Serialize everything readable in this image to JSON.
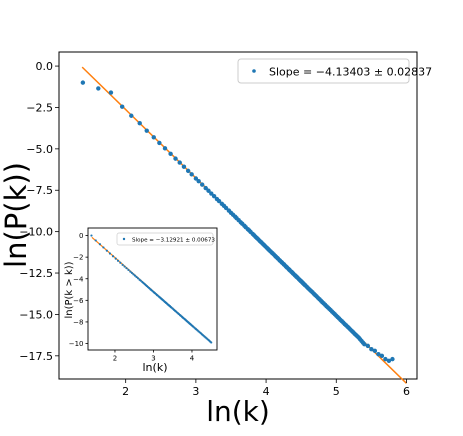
{
  "chart_data": [
    {
      "id": "main",
      "type": "scatter",
      "xlabel": "ln(k)",
      "ylabel": "ln(P(k))",
      "xlim": [
        1.05,
        6.15
      ],
      "ylim": [
        -18.9,
        0.85
      ],
      "xticks": [
        2,
        3,
        4,
        5,
        6
      ],
      "yticks": [
        0.0,
        -2.5,
        -5.0,
        -7.5,
        -10.0,
        -12.5,
        -15.0,
        -17.5
      ],
      "xtick_labels": [
        "2",
        "3",
        "4",
        "5",
        "6"
      ],
      "ytick_labels": [
        "0.0",
        "−2.5",
        "−5.0",
        "−7.5",
        "−10.0",
        "−12.5",
        "−15.0",
        "−17.5"
      ],
      "legend": {
        "label": "Slope = −4.13403 ± 0.02837",
        "placement": "top-right"
      },
      "fit": {
        "slope": -4.13403,
        "intercept": 5.64,
        "x_range": [
          1.38,
          6.0
        ],
        "color": "#ff7f0e"
      },
      "point_color": "#1f77b4",
      "series": [
        {
          "x": [
            1.39,
            1.61,
            1.79,
            1.95,
            2.08,
            2.2,
            2.3,
            2.4,
            2.48,
            2.56,
            2.64,
            2.71,
            2.77,
            2.83,
            2.89,
            2.94,
            3.0,
            3.04,
            3.09,
            3.14,
            3.18,
            3.22,
            3.26,
            3.3,
            3.33,
            3.37,
            3.4,
            3.43,
            3.47,
            3.5,
            3.53,
            3.56,
            3.58,
            3.61,
            3.64,
            3.66,
            3.69,
            3.71,
            3.74,
            3.76,
            3.78,
            3.81,
            3.83,
            3.85,
            3.87,
            3.89,
            3.91,
            3.93,
            3.95,
            3.97,
            3.99,
            4.01,
            4.03,
            4.04,
            4.06,
            4.08,
            4.09,
            4.11,
            4.13,
            4.14,
            4.16,
            4.17,
            4.19,
            4.2,
            4.22,
            4.23,
            4.25,
            4.26,
            4.28,
            4.29,
            4.3,
            4.32,
            4.33,
            4.34,
            4.36,
            4.37,
            4.38,
            4.39,
            4.41,
            4.42,
            4.43,
            4.44,
            4.45,
            4.47,
            4.48,
            4.49,
            4.5,
            4.51,
            4.52,
            4.53,
            4.54,
            4.55,
            4.56,
            4.58,
            4.6,
            4.62,
            4.64,
            4.66,
            4.68,
            4.7,
            4.72,
            4.74,
            4.76,
            4.78,
            4.8,
            4.82,
            4.84,
            4.86,
            4.88,
            4.9,
            4.92,
            4.94,
            4.96,
            4.98,
            5.0,
            5.02,
            5.04,
            5.06,
            5.08,
            5.1,
            5.12,
            5.14,
            5.16,
            5.18,
            5.2,
            5.22,
            5.24,
            5.26,
            5.28,
            5.3,
            5.32,
            5.34,
            5.36,
            5.38,
            5.4,
            5.45,
            5.5,
            5.55,
            5.6,
            5.65,
            5.7,
            5.75,
            5.8
          ],
          "y": [
            -1.0,
            -1.35,
            -1.6,
            -2.45,
            -3.0,
            -3.45,
            -3.9,
            -4.3,
            -4.64,
            -4.97,
            -5.3,
            -5.59,
            -5.83,
            -6.08,
            -6.33,
            -6.54,
            -6.79,
            -6.95,
            -7.16,
            -7.37,
            -7.53,
            -7.7,
            -7.86,
            -8.03,
            -8.15,
            -8.32,
            -8.44,
            -8.57,
            -8.73,
            -8.86,
            -8.98,
            -9.1,
            -9.19,
            -9.31,
            -9.44,
            -9.52,
            -9.64,
            -9.73,
            -9.85,
            -9.93,
            -10.02,
            -10.14,
            -10.22,
            -10.31,
            -10.39,
            -10.47,
            -10.56,
            -10.64,
            -10.72,
            -10.8,
            -10.89,
            -10.97,
            -11.05,
            -11.1,
            -11.18,
            -11.26,
            -11.3,
            -11.38,
            -11.47,
            -11.51,
            -11.59,
            -11.63,
            -11.72,
            -11.76,
            -11.84,
            -11.88,
            -11.96,
            -12.0,
            -12.09,
            -12.13,
            -12.17,
            -12.25,
            -12.3,
            -12.34,
            -12.42,
            -12.46,
            -12.5,
            -12.55,
            -12.63,
            -12.67,
            -12.71,
            -12.75,
            -12.79,
            -12.88,
            -12.92,
            -12.96,
            -13.0,
            -13.04,
            -13.08,
            -13.13,
            -13.17,
            -13.21,
            -13.25,
            -13.33,
            -13.42,
            -13.5,
            -13.58,
            -13.66,
            -13.75,
            -13.83,
            -13.91,
            -14.0,
            -14.08,
            -14.16,
            -14.25,
            -14.33,
            -14.41,
            -14.5,
            -14.58,
            -14.66,
            -14.74,
            -14.83,
            -14.91,
            -14.99,
            -15.08,
            -15.16,
            -15.24,
            -15.33,
            -15.41,
            -15.49,
            -15.58,
            -15.66,
            -15.74,
            -15.82,
            -15.91,
            -15.99,
            -16.07,
            -16.16,
            -16.24,
            -16.32,
            -16.4,
            -16.5,
            -16.6,
            -16.7,
            -16.8,
            -16.9,
            -17.1,
            -17.2,
            -17.4,
            -17.5,
            -17.7,
            -17.8,
            -17.7
          ]
        }
      ]
    },
    {
      "id": "inset",
      "type": "scatter",
      "xlabel": "ln(k)",
      "ylabel": "ln(P(k > k))",
      "xlim": [
        1.3,
        4.65
      ],
      "ylim": [
        -10.6,
        0.7
      ],
      "xticks": [
        2,
        3,
        4
      ],
      "yticks": [
        0,
        -2,
        -4,
        -6,
        -8,
        -10
      ],
      "xtick_labels": [
        "2",
        "3",
        "4"
      ],
      "ytick_labels": [
        "0",
        "−2",
        "−4",
        "−6",
        "−8",
        "−10"
      ],
      "legend": {
        "label": "Slope = −3.12921 ± 0.00673",
        "placement": "top-right"
      },
      "fit": {
        "slope": -3.12921,
        "intercept": 4.22,
        "x_range": [
          1.4,
          4.5
        ],
        "color": "#ff7f0e"
      },
      "point_color": "#1f77b4",
      "series": [
        {
          "x": [
            1.39,
            1.5,
            1.61,
            1.7,
            1.79,
            1.87,
            1.95,
            2.02,
            2.08,
            2.14,
            2.2,
            2.25,
            2.3,
            2.35,
            2.4,
            2.44,
            2.48,
            2.52,
            2.56,
            2.6,
            2.64,
            2.67,
            2.71,
            2.74,
            2.77,
            2.8,
            2.83,
            2.86,
            2.89,
            2.92,
            2.94,
            2.97,
            3.0,
            3.02,
            3.04,
            3.07,
            3.09,
            3.11,
            3.14,
            3.16,
            3.18,
            3.2,
            3.22,
            3.24,
            3.26,
            3.28,
            3.3,
            3.32,
            3.33,
            3.35,
            3.37,
            3.39,
            3.4,
            3.42,
            3.43,
            3.45,
            3.47,
            3.5,
            3.53,
            3.56,
            3.58,
            3.61,
            3.64,
            3.66,
            3.69,
            3.71,
            3.74,
            3.76,
            3.78,
            3.81,
            3.83,
            3.85,
            3.87,
            3.89,
            3.91,
            3.93,
            3.95,
            3.97,
            3.99,
            4.01,
            4.03,
            4.06,
            4.09,
            4.11,
            4.14,
            4.17,
            4.2,
            4.23,
            4.26,
            4.29,
            4.32,
            4.35,
            4.38,
            4.41,
            4.44,
            4.47,
            4.5
          ],
          "y": [
            0.0,
            -0.45,
            -0.8,
            -1.1,
            -1.4,
            -1.66,
            -1.92,
            -2.14,
            -2.33,
            -2.52,
            -2.71,
            -2.87,
            -3.02,
            -3.18,
            -3.34,
            -3.46,
            -3.59,
            -3.71,
            -3.84,
            -3.96,
            -4.09,
            -4.18,
            -4.3,
            -4.4,
            -4.49,
            -4.59,
            -4.68,
            -4.78,
            -4.87,
            -4.97,
            -5.03,
            -5.12,
            -5.22,
            -5.28,
            -5.34,
            -5.43,
            -5.5,
            -5.56,
            -5.65,
            -5.71,
            -5.77,
            -5.84,
            -5.9,
            -5.96,
            -6.02,
            -6.09,
            -6.15,
            -6.21,
            -6.24,
            -6.3,
            -6.37,
            -6.43,
            -6.46,
            -6.52,
            -6.55,
            -6.62,
            -6.68,
            -6.77,
            -6.87,
            -6.96,
            -7.02,
            -7.12,
            -7.21,
            -7.27,
            -7.37,
            -7.43,
            -7.52,
            -7.59,
            -7.65,
            -7.74,
            -7.8,
            -7.87,
            -7.93,
            -7.99,
            -8.05,
            -8.12,
            -8.18,
            -8.24,
            -8.3,
            -8.37,
            -8.43,
            -8.52,
            -8.62,
            -8.68,
            -8.77,
            -8.87,
            -8.96,
            -9.05,
            -9.15,
            -9.24,
            -9.34,
            -9.43,
            -9.52,
            -9.62,
            -9.71,
            -9.81,
            -9.9
          ]
        }
      ]
    }
  ]
}
